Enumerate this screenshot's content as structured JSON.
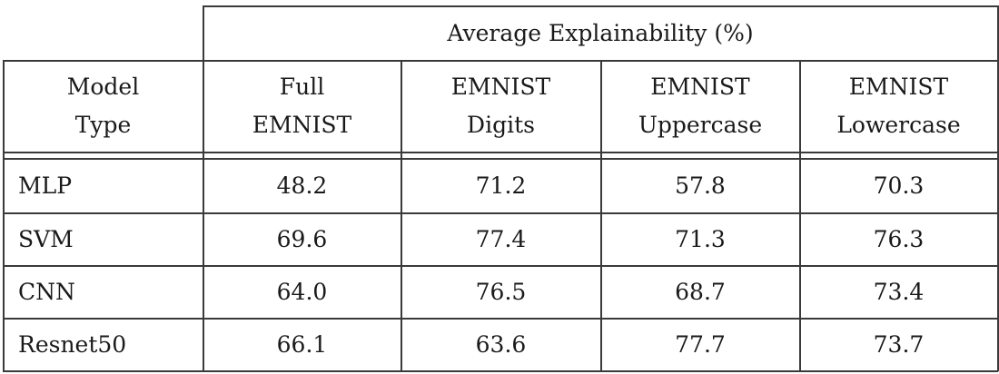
{
  "group_header": "Average Explainability (%)",
  "columns": [
    [
      "Model",
      "Type"
    ],
    [
      "Full",
      "EMNIST"
    ],
    [
      "EMNIST",
      "Digits"
    ],
    [
      "EMNIST",
      "Uppercase"
    ],
    [
      "EMNIST",
      "Lowercase"
    ]
  ],
  "rows": [
    [
      "MLP",
      "48.2",
      "71.2",
      "57.8",
      "70.3"
    ],
    [
      "SVM",
      "69.6",
      "77.4",
      "71.3",
      "76.3"
    ],
    [
      "CNN",
      "64.0",
      "76.5",
      "68.7",
      "73.4"
    ],
    [
      "Resnet50",
      "66.1",
      "63.6",
      "77.7",
      "73.7"
    ]
  ]
}
